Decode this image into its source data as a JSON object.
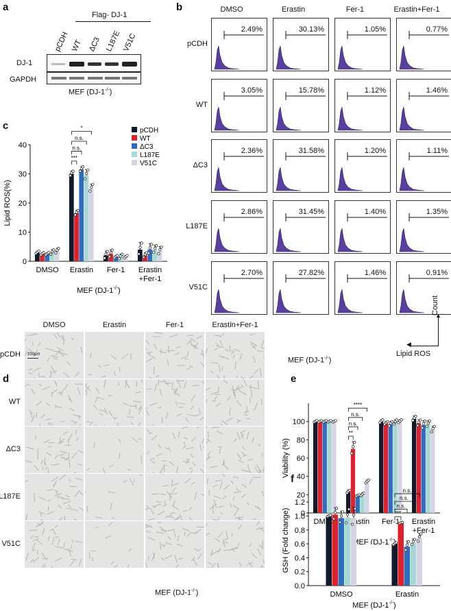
{
  "panel_a": {
    "letter": "a",
    "group_label": "Flag- DJ-1",
    "lanes": [
      "pCDH",
      "WT",
      "ΔC3",
      "L187E",
      "V51C"
    ],
    "rows": [
      "DJ-1",
      "GAPDH"
    ],
    "cell_label": "MEF (DJ-1",
    "cell_sup": "-/-",
    "cell_close": ")"
  },
  "panel_b": {
    "letter": "b",
    "columns": [
      "DMSO",
      "Erastin",
      "Fer-1",
      "Erastin+Fer-1"
    ],
    "rows": [
      "pCDH",
      "WT",
      "ΔC3",
      "L187E",
      "V51C"
    ],
    "percentages": [
      [
        "2.49%",
        "30.13%",
        "1.05%",
        "0.77%"
      ],
      [
        "3.05%",
        "15.78%",
        "1.12%",
        "1.46%"
      ],
      [
        "2.36%",
        "31.58%",
        "1.20%",
        "1.11%"
      ],
      [
        "2.86%",
        "31.45%",
        "1.40%",
        "1.35%"
      ],
      [
        "2.70%",
        "27.82%",
        "1.46%",
        "0.91%"
      ]
    ],
    "hist_color": "#5b3fa0",
    "xaxis_label": "Lipid ROS",
    "yaxis_label": "Count",
    "cell_label": "MEF (DJ-1",
    "cell_sup": "-/-",
    "cell_close": ")"
  },
  "panel_d": {
    "letter": "d",
    "columns": [
      "DMSO",
      "Erastin",
      "Fer-1",
      "Erastin+Fer-1"
    ],
    "rows": [
      "pCDH",
      "WT",
      "ΔC3",
      "L187E",
      "V51C"
    ],
    "scale_bar": "100μm",
    "cell_label": "MEF (DJ-1",
    "cell_sup": "-/-",
    "cell_close": ")"
  },
  "chart_data": [
    {
      "id": "c",
      "letter": "c",
      "type": "bar",
      "title": "",
      "ylabel": "Lipid ROS(%)",
      "xlabel": "MEF (DJ-1-/-)",
      "xlabel_main": "MEF (DJ-1",
      "xlabel_sup": "-/-",
      "xlabel_close": ")",
      "ylim": [
        0,
        40
      ],
      "yticks": [
        0,
        10,
        20,
        30,
        40
      ],
      "categories": [
        "DMSO",
        "Erastin",
        "Fer-1",
        "Erastin\n+Fer-1"
      ],
      "series": [
        {
          "name": "pCDH",
          "color": "#0f1a2c",
          "values": [
            3.0,
            30.0,
            2.0,
            4.0
          ],
          "errors": [
            0.5,
            1.0,
            1.5,
            2.5
          ]
        },
        {
          "name": "WT",
          "color": "#e0202a",
          "values": [
            2.5,
            16.5,
            2.5,
            2.0
          ],
          "errors": [
            0.5,
            1.0,
            1.5,
            1.0
          ]
        },
        {
          "name": "ΔC3",
          "color": "#2f6dbf",
          "values": [
            2.5,
            31.5,
            1.5,
            4.0
          ],
          "errors": [
            0.5,
            1.0,
            0.5,
            2.0
          ]
        },
        {
          "name": "L187E",
          "color": "#a8d8d4",
          "values": [
            3.0,
            29.5,
            1.5,
            4.0
          ],
          "errors": [
            1.0,
            2.0,
            1.0,
            1.5
          ]
        },
        {
          "name": "V51C",
          "color": "#d4d4e6",
          "values": [
            3.5,
            25.0,
            1.5,
            3.5
          ],
          "errors": [
            1.0,
            1.5,
            0.5,
            1.5
          ]
        }
      ],
      "significance": [
        {
          "label": "***",
          "from": 0,
          "to": 1
        },
        {
          "label": "n.s.",
          "from": 0,
          "to": 2
        },
        {
          "label": "n.s.",
          "from": 0,
          "to": 3
        },
        {
          "label": "*",
          "from": 0,
          "to": 4
        }
      ]
    },
    {
      "id": "e",
      "letter": "e",
      "type": "bar",
      "title": "",
      "ylabel": "Viability (%)",
      "xlabel": "MEF (DJ-1-/-)",
      "xlabel_main": "MEF (DJ-1",
      "xlabel_sup": "-/-",
      "xlabel_close": ")",
      "ylim": [
        0,
        120
      ],
      "yticks": [
        0,
        20,
        40,
        60,
        80,
        100
      ],
      "categories": [
        "DMSO",
        "Erastin",
        "Fer-1",
        "Erastin\n+Fer-1"
      ],
      "series": [
        {
          "name": "pCDH",
          "color": "#0f1a2c",
          "values": [
            100,
            23,
            100,
            103
          ],
          "errors": [
            1,
            2,
            2,
            3
          ]
        },
        {
          "name": "WT",
          "color": "#e0202a",
          "values": [
            100,
            70,
            98,
            98
          ],
          "errors": [
            1,
            8,
            2,
            4
          ]
        },
        {
          "name": "ΔC3",
          "color": "#2f6dbf",
          "values": [
            100,
            19,
            97,
            96
          ],
          "errors": [
            1,
            1,
            3,
            5
          ]
        },
        {
          "name": "L187E",
          "color": "#a8d8d4",
          "values": [
            100,
            20,
            99,
            97
          ],
          "errors": [
            1,
            2,
            3,
            4
          ]
        },
        {
          "name": "V51C",
          "color": "#d4d4e6",
          "values": [
            100,
            34,
            100,
            91
          ],
          "errors": [
            1,
            2,
            2,
            4
          ]
        }
      ],
      "significance": [
        {
          "label": "**",
          "from": 0,
          "to": 1
        },
        {
          "label": "n.s.",
          "from": 0,
          "to": 2
        },
        {
          "label": "n.s.",
          "from": 0,
          "to": 3
        },
        {
          "label": "****",
          "from": 0,
          "to": 4
        }
      ]
    },
    {
      "id": "f",
      "letter": "f",
      "type": "bar",
      "title": "",
      "ylabel": "GSH (Fold change)",
      "xlabel": "MEF (DJ-1-/-)",
      "xlabel_main": "MEF (DJ-1",
      "xlabel_sup": "-/-",
      "xlabel_close": ")",
      "ylim": [
        0,
        1.3
      ],
      "yticks": [
        0.0,
        0.2,
        0.4,
        0.6,
        0.8,
        1.0,
        1.2
      ],
      "categories": [
        "DMSO",
        "Erastin"
      ],
      "series": [
        {
          "name": "pCDH",
          "color": "#0f1a2c",
          "values": [
            1.0,
            0.6
          ],
          "errors": [
            0.01,
            0.02
          ]
        },
        {
          "name": "WT",
          "color": "#e0202a",
          "values": [
            1.02,
            0.9
          ],
          "errors": [
            0.1,
            0.01
          ]
        },
        {
          "name": "ΔC3",
          "color": "#2f6dbf",
          "values": [
            0.97,
            0.56
          ],
          "errors": [
            0.1,
            0.08
          ]
        },
        {
          "name": "L187E",
          "color": "#a8d8d4",
          "values": [
            0.98,
            0.62
          ],
          "errors": [
            0.13,
            0.05
          ]
        },
        {
          "name": "V51C",
          "color": "#d4d4e6",
          "values": [
            0.97,
            0.68
          ],
          "errors": [
            0.15,
            0.07
          ]
        }
      ],
      "significance": [
        {
          "label": "***",
          "from": 0,
          "to": 1
        },
        {
          "label": "n.s.",
          "from": 0,
          "to": 2
        },
        {
          "label": "n.s.",
          "from": 0,
          "to": 3
        },
        {
          "label": "n.s.",
          "from": 0,
          "to": 4
        }
      ]
    }
  ]
}
